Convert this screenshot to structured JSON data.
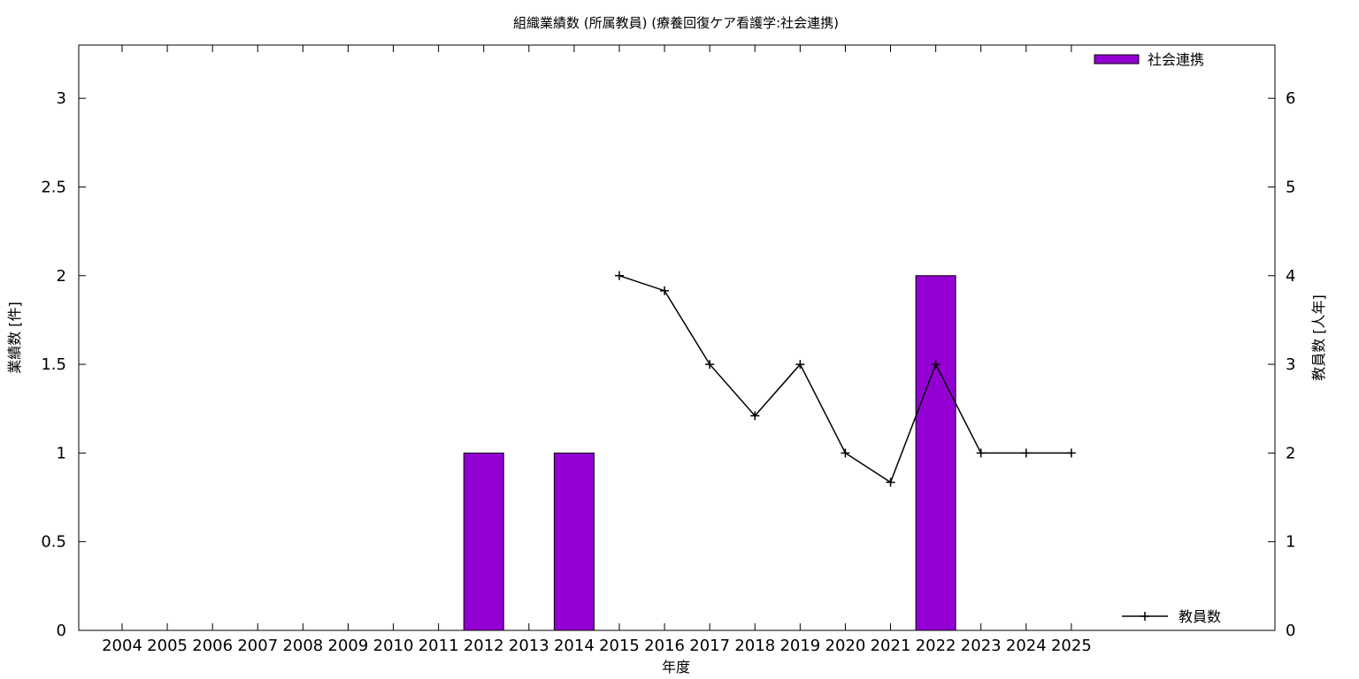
{
  "chart_data": {
    "type": "bar",
    "title": "組織業績数 (所属教員) (療養回復ケア看護学:社会連携)",
    "xlabel": "年度",
    "ylabel": "業績数 [件]",
    "y2label": "教員数 [人年]",
    "categories": [
      "2004",
      "2005",
      "2006",
      "2007",
      "2008",
      "2009",
      "2010",
      "2011",
      "2012",
      "2013",
      "2014",
      "2015",
      "2016",
      "2017",
      "2018",
      "2019",
      "2020",
      "2021",
      "2022",
      "2023",
      "2024",
      "2025"
    ],
    "ylim": [
      0,
      3.3
    ],
    "y2lim": [
      0,
      6.6
    ],
    "yticks": [
      "0",
      "0.5",
      "1",
      "1.5",
      "2",
      "2.5",
      "3"
    ],
    "y2ticks": [
      "0",
      "1",
      "2",
      "3",
      "4",
      "5",
      "6"
    ],
    "grid": false,
    "legend_placement": "top-right / bottom-right",
    "series": [
      {
        "name": "社会連携",
        "kind": "bar",
        "axis": "left",
        "color": "#9400d3",
        "values": [
          0,
          0,
          0,
          0,
          0,
          0,
          0,
          0,
          1,
          0,
          1,
          0,
          0,
          0,
          0,
          0,
          0,
          0,
          2,
          0,
          0,
          0
        ]
      },
      {
        "name": "教員数",
        "kind": "line",
        "axis": "right",
        "color": "#000000",
        "values": [
          null,
          null,
          null,
          null,
          null,
          null,
          null,
          null,
          null,
          null,
          null,
          4,
          3.83,
          3,
          2.42,
          3,
          2,
          1.67,
          3,
          2,
          2,
          2
        ]
      }
    ]
  }
}
